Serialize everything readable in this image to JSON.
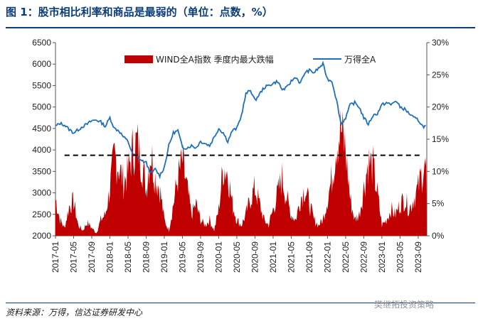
{
  "title": "图 1：股市相比利率和商品是最弱的（单位：点数，%）",
  "source": "资料来源：万得，信达证券研发中心",
  "watermark": "樊继拓投资策略",
  "colors": {
    "bar": "#c00000",
    "line": "#1f6fbf",
    "threshold": "#000000",
    "title": "#0b3d7a"
  },
  "chart_data": {
    "type": "line+area",
    "legend": [
      "WIND全A指数 季度内最大跌幅",
      "万得全A"
    ],
    "legend_placement": "top-center",
    "y_left": {
      "min": 2000,
      "max": 6500,
      "ticks": [
        "2000",
        "2500",
        "3000",
        "3500",
        "4000",
        "4500",
        "5000",
        "5500",
        "6000",
        "6500"
      ]
    },
    "y_right": {
      "min": 0,
      "max": 30,
      "ticks": [
        "0%",
        "5%",
        "10%",
        "15%",
        "20%",
        "25%",
        "30%"
      ]
    },
    "x_ticks": [
      "2017-01",
      "2017-05",
      "2017-09",
      "2018-01",
      "2018-05",
      "2018-09",
      "2019-01",
      "2019-05",
      "2019-09",
      "2020-01",
      "2020-05",
      "2020-09",
      "2021-01",
      "2021-05",
      "2021-09",
      "2022-01",
      "2022-05",
      "2022-09",
      "2023-01",
      "2023-05",
      "2023-09"
    ],
    "x_range": [
      "2017-01",
      "2023-10"
    ],
    "threshold": {
      "value": 12.5,
      "axis": "right",
      "style": "dashed"
    },
    "series": [
      {
        "name": "万得全A",
        "axis": "left",
        "type": "line",
        "points": [
          [
            "2017-01",
            4550
          ],
          [
            "2017-02",
            4620
          ],
          [
            "2017-03",
            4580
          ],
          [
            "2017-04",
            4480
          ],
          [
            "2017-05",
            4400
          ],
          [
            "2017-06",
            4470
          ],
          [
            "2017-07",
            4550
          ],
          [
            "2017-08",
            4600
          ],
          [
            "2017-09",
            4680
          ],
          [
            "2017-10",
            4700
          ],
          [
            "2017-11",
            4650
          ],
          [
            "2017-12",
            4550
          ],
          [
            "2018-01",
            4750
          ],
          [
            "2018-02",
            4500
          ],
          [
            "2018-03",
            4450
          ],
          [
            "2018-04",
            4300
          ],
          [
            "2018-05",
            4200
          ],
          [
            "2018-06",
            3900
          ],
          [
            "2018-07",
            3850
          ],
          [
            "2018-08",
            3750
          ],
          [
            "2018-09",
            3700
          ],
          [
            "2018-10",
            3450
          ],
          [
            "2018-11",
            3550
          ],
          [
            "2018-12",
            3400
          ],
          [
            "2019-01",
            3600
          ],
          [
            "2019-02",
            4100
          ],
          [
            "2019-03",
            4400
          ],
          [
            "2019-04",
            4450
          ],
          [
            "2019-05",
            4050
          ],
          [
            "2019-06",
            4050
          ],
          [
            "2019-07",
            4100
          ],
          [
            "2019-08",
            4050
          ],
          [
            "2019-09",
            4200
          ],
          [
            "2019-10",
            4150
          ],
          [
            "2019-11",
            4100
          ],
          [
            "2019-12",
            4300
          ],
          [
            "2020-01",
            4500
          ],
          [
            "2020-02",
            4400
          ],
          [
            "2020-03",
            4200
          ],
          [
            "2020-04",
            4450
          ],
          [
            "2020-05",
            4500
          ],
          [
            "2020-06",
            4800
          ],
          [
            "2020-07",
            5300
          ],
          [
            "2020-08",
            5400
          ],
          [
            "2020-09",
            5150
          ],
          [
            "2020-10",
            5300
          ],
          [
            "2020-11",
            5450
          ],
          [
            "2020-12",
            5500
          ],
          [
            "2021-01",
            5550
          ],
          [
            "2021-02",
            5600
          ],
          [
            "2021-03",
            5400
          ],
          [
            "2021-04",
            5450
          ],
          [
            "2021-05",
            5600
          ],
          [
            "2021-06",
            5700
          ],
          [
            "2021-07",
            5550
          ],
          [
            "2021-08",
            5800
          ],
          [
            "2021-09",
            5850
          ],
          [
            "2021-10",
            5800
          ],
          [
            "2021-11",
            5900
          ],
          [
            "2021-12",
            6000
          ],
          [
            "2022-01",
            5650
          ],
          [
            "2022-02",
            5600
          ],
          [
            "2022-03",
            5150
          ],
          [
            "2022-04",
            4600
          ],
          [
            "2022-05",
            4750
          ],
          [
            "2022-06",
            5050
          ],
          [
            "2022-07",
            5100
          ],
          [
            "2022-08",
            5000
          ],
          [
            "2022-09",
            4750
          ],
          [
            "2022-10",
            4600
          ],
          [
            "2022-11",
            4800
          ],
          [
            "2022-12",
            4850
          ],
          [
            "2023-01",
            5050
          ],
          [
            "2023-02",
            5100
          ],
          [
            "2023-03",
            5050
          ],
          [
            "2023-04",
            5150
          ],
          [
            "2023-05",
            5000
          ],
          [
            "2023-06",
            4950
          ],
          [
            "2023-07",
            4850
          ],
          [
            "2023-08",
            4750
          ],
          [
            "2023-09",
            4700
          ],
          [
            "2023-10",
            4550
          ]
        ]
      },
      {
        "name": "WIND全A指数 季度内最大跌幅",
        "axis": "right",
        "type": "area",
        "points": [
          [
            "2017-01",
            7
          ],
          [
            "2017-02",
            3
          ],
          [
            "2017-03",
            1.5
          ],
          [
            "2017-04",
            5.5
          ],
          [
            "2017-05",
            6.5
          ],
          [
            "2017-06",
            2
          ],
          [
            "2017-07",
            1
          ],
          [
            "2017-08",
            2.5
          ],
          [
            "2017-09",
            1.5
          ],
          [
            "2017-10",
            0.5
          ],
          [
            "2017-11",
            3
          ],
          [
            "2017-12",
            4
          ],
          [
            "2018-01",
            9
          ],
          [
            "2018-02",
            15
          ],
          [
            "2018-03",
            13
          ],
          [
            "2018-04",
            10
          ],
          [
            "2018-05",
            12
          ],
          [
            "2018-06",
            16
          ],
          [
            "2018-07",
            17.5
          ],
          [
            "2018-08",
            14
          ],
          [
            "2018-09",
            9
          ],
          [
            "2018-10",
            16
          ],
          [
            "2018-11",
            11
          ],
          [
            "2018-12",
            9
          ],
          [
            "2019-01",
            3
          ],
          [
            "2019-02",
            1
          ],
          [
            "2019-03",
            6
          ],
          [
            "2019-04",
            11
          ],
          [
            "2019-05",
            14
          ],
          [
            "2019-06",
            9
          ],
          [
            "2019-07",
            4
          ],
          [
            "2019-08",
            6
          ],
          [
            "2019-09",
            3
          ],
          [
            "2019-10",
            2
          ],
          [
            "2019-11",
            3
          ],
          [
            "2019-12",
            1
          ],
          [
            "2020-01",
            5
          ],
          [
            "2020-02",
            13
          ],
          [
            "2020-03",
            12
          ],
          [
            "2020-04",
            6
          ],
          [
            "2020-05",
            3
          ],
          [
            "2020-06",
            2
          ],
          [
            "2020-07",
            4
          ],
          [
            "2020-08",
            7
          ],
          [
            "2020-09",
            9
          ],
          [
            "2020-10",
            6
          ],
          [
            "2020-11",
            3
          ],
          [
            "2020-12",
            2
          ],
          [
            "2021-01",
            5
          ],
          [
            "2021-02",
            8
          ],
          [
            "2021-03",
            11
          ],
          [
            "2021-04",
            7
          ],
          [
            "2021-05",
            4
          ],
          [
            "2021-06",
            3
          ],
          [
            "2021-07",
            7
          ],
          [
            "2021-08",
            9
          ],
          [
            "2021-09",
            6
          ],
          [
            "2021-10",
            3
          ],
          [
            "2021-11",
            2
          ],
          [
            "2021-12",
            3
          ],
          [
            "2022-01",
            7
          ],
          [
            "2022-02",
            11
          ],
          [
            "2022-03",
            18
          ],
          [
            "2022-04",
            20
          ],
          [
            "2022-05",
            16
          ],
          [
            "2022-06",
            7
          ],
          [
            "2022-07",
            3
          ],
          [
            "2022-08",
            4
          ],
          [
            "2022-09",
            9
          ],
          [
            "2022-10",
            14
          ],
          [
            "2022-11",
            13
          ],
          [
            "2022-12",
            8
          ],
          [
            "2023-01",
            2
          ],
          [
            "2023-02",
            3
          ],
          [
            "2023-03",
            5
          ],
          [
            "2023-04",
            4
          ],
          [
            "2023-05",
            6
          ],
          [
            "2023-06",
            7
          ],
          [
            "2023-07",
            5
          ],
          [
            "2023-08",
            7
          ],
          [
            "2023-09",
            9
          ],
          [
            "2023-10",
            12.5
          ]
        ]
      }
    ]
  }
}
